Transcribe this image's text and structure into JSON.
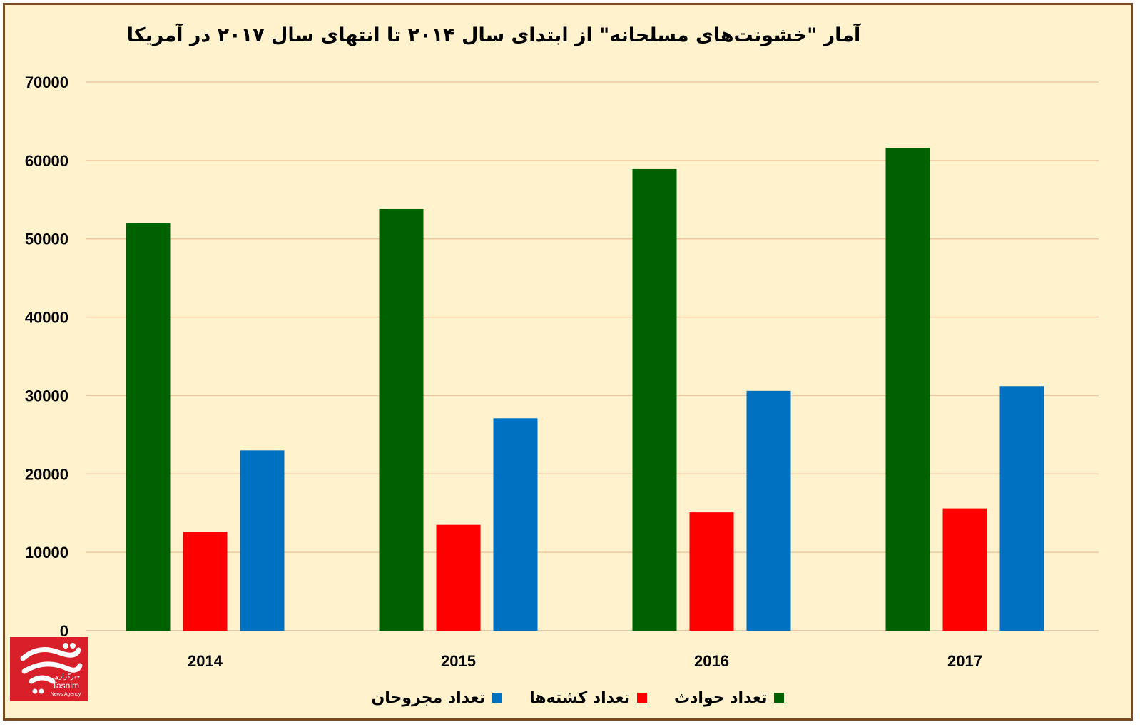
{
  "chart_data": {
    "type": "bar",
    "title": "آمار \"خشونت‌های مسلحانه\" از ابتدای سال ۲۰۱۴ تا انتهای سال ۲۰۱۷ در آمریکا",
    "categories": [
      "2014",
      "2015",
      "2016",
      "2017"
    ],
    "series": [
      {
        "name": "تعداد حوادث",
        "color": "#006100",
        "values": [
          52000,
          53800,
          58900,
          61600
        ]
      },
      {
        "name": "تعداد کشته‌ها",
        "color": "#ff0000",
        "values": [
          12600,
          13500,
          15100,
          15600
        ]
      },
      {
        "name": "تعداد مجروحان",
        "color": "#0070c0",
        "values": [
          23000,
          27100,
          30600,
          31200
        ]
      }
    ],
    "ylim": [
      0,
      70000
    ],
    "yticks": [
      "0",
      "10000",
      "20000",
      "30000",
      "40000",
      "50000",
      "60000",
      "70000"
    ],
    "grid": true,
    "legend_position": "bottom"
  },
  "logo": {
    "text_fa": "خبرگزاری",
    "text_en": "Tasnim",
    "subtext_en": "News Agency"
  }
}
